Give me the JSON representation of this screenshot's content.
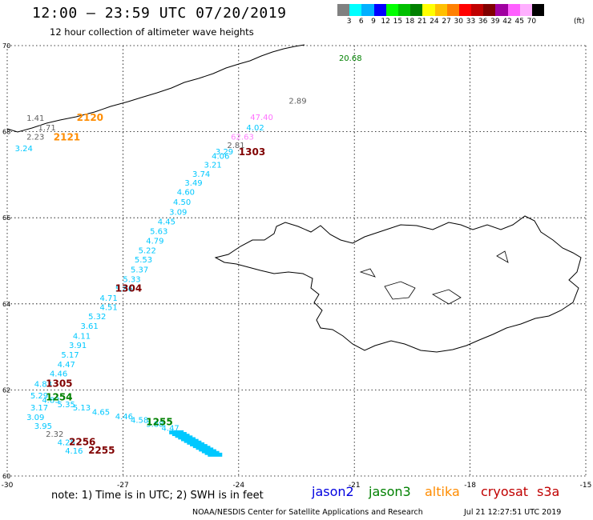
{
  "header": {
    "title": "12:00 — 23:59 UTC 07/20/2019",
    "subtitle": "12 hour collection of altimeter wave heights"
  },
  "legend": {
    "swatches": [
      "#808080",
      "#00ffff",
      "#00b0ff",
      "#0000ff",
      "#00ff00",
      "#00c000",
      "#008000",
      "#ffff00",
      "#ffc000",
      "#ff8000",
      "#ff0000",
      "#c00000",
      "#800000",
      "#a000a0",
      "#ff60ff",
      "#ffb0ff",
      "#000000"
    ],
    "labels": [
      "3",
      "6",
      "9",
      "12",
      "15",
      "18",
      "21",
      "24",
      "27",
      "30",
      "33",
      "36",
      "39",
      "42",
      "45",
      "70"
    ],
    "unit": "(ft)"
  },
  "axes": {
    "x_labels": [
      "-30",
      "-27",
      "-24",
      "-21",
      "-18",
      "-15"
    ],
    "y_labels": [
      "70",
      "68",
      "66",
      "64",
      "62",
      "60"
    ],
    "lon_range": [
      -30,
      -15
    ],
    "lat_range": [
      60,
      70
    ]
  },
  "observations": [
    {
      "text": "20.68",
      "lon": -21.4,
      "lat": 69.65,
      "color": "#008000"
    },
    {
      "text": "2.89",
      "lon": -22.7,
      "lat": 68.65,
      "color": "#606060"
    },
    {
      "text": "47.40",
      "lon": -23.7,
      "lat": 68.27,
      "color": "#ff70ff"
    },
    {
      "text": "4.02",
      "lon": -23.8,
      "lat": 68.03,
      "color": "#00c8ff"
    },
    {
      "text": "62.63",
      "lon": -24.2,
      "lat": 67.82,
      "color": "#ff80ff"
    },
    {
      "text": "2.81",
      "lon": -24.3,
      "lat": 67.62,
      "color": "#606060"
    },
    {
      "text": "3.29",
      "lon": -24.6,
      "lat": 67.47,
      "color": "#00c8ff"
    },
    {
      "text": "4.06",
      "lon": -24.7,
      "lat": 67.37,
      "color": "#00c8ff"
    },
    {
      "text": "3.21",
      "lon": -24.9,
      "lat": 67.17,
      "color": "#00c8ff"
    },
    {
      "text": "3.74",
      "lon": -25.2,
      "lat": 66.95,
      "color": "#00c8ff"
    },
    {
      "text": "3.49",
      "lon": -25.4,
      "lat": 66.75,
      "color": "#00c8ff"
    },
    {
      "text": "4.60",
      "lon": -25.6,
      "lat": 66.53,
      "color": "#00c8ff"
    },
    {
      "text": "4.50",
      "lon": -25.7,
      "lat": 66.3,
      "color": "#00c8ff"
    },
    {
      "text": "3.09",
      "lon": -25.8,
      "lat": 66.07,
      "color": "#00c8ff"
    },
    {
      "text": "4.45",
      "lon": -26.1,
      "lat": 65.85,
      "color": "#00c8ff"
    },
    {
      "text": "5.63",
      "lon": -26.3,
      "lat": 65.62,
      "color": "#00c8ff"
    },
    {
      "text": "4.79",
      "lon": -26.4,
      "lat": 65.4,
      "color": "#00c8ff"
    },
    {
      "text": "5.22",
      "lon": -26.6,
      "lat": 65.18,
      "color": "#00c8ff"
    },
    {
      "text": "5.53",
      "lon": -26.7,
      "lat": 64.96,
      "color": "#00c8ff"
    },
    {
      "text": "5.37",
      "lon": -26.8,
      "lat": 64.73,
      "color": "#00c8ff"
    },
    {
      "text": "5.33",
      "lon": -27.0,
      "lat": 64.51,
      "color": "#00c8ff"
    },
    {
      "text": "5.86",
      "lon": -27.2,
      "lat": 64.28,
      "color": "#00c8ff"
    },
    {
      "text": "4.71",
      "lon": -27.6,
      "lat": 64.07,
      "color": "#00c8ff"
    },
    {
      "text": "4.51",
      "lon": -27.6,
      "lat": 63.86,
      "color": "#00c8ff"
    },
    {
      "text": "5.32",
      "lon": -27.9,
      "lat": 63.64,
      "color": "#00c8ff"
    },
    {
      "text": "3.61",
      "lon": -28.1,
      "lat": 63.42,
      "color": "#00c8ff"
    },
    {
      "text": "4.11",
      "lon": -28.3,
      "lat": 63.19,
      "color": "#00c8ff"
    },
    {
      "text": "3.91",
      "lon": -28.4,
      "lat": 62.97,
      "color": "#00c8ff"
    },
    {
      "text": "5.17",
      "lon": -28.6,
      "lat": 62.75,
      "color": "#00c8ff"
    },
    {
      "text": "4.47",
      "lon": -28.7,
      "lat": 62.53,
      "color": "#00c8ff"
    },
    {
      "text": "4.46",
      "lon": -28.9,
      "lat": 62.31,
      "color": "#00c8ff"
    },
    {
      "text": "4.83",
      "lon": -29.3,
      "lat": 62.07,
      "color": "#00c8ff"
    },
    {
      "text": "5.29",
      "lon": -29.4,
      "lat": 61.8,
      "color": "#00c8ff"
    },
    {
      "text": "4.83",
      "lon": -29.1,
      "lat": 61.7,
      "color": "#00c8ff"
    },
    {
      "text": "5.35",
      "lon": -28.7,
      "lat": 61.6,
      "color": "#00c8ff"
    },
    {
      "text": "3.17",
      "lon": -29.4,
      "lat": 61.52,
      "color": "#00c8ff"
    },
    {
      "text": "5.13",
      "lon": -28.3,
      "lat": 61.52,
      "color": "#00c8ff"
    },
    {
      "text": "4.65",
      "lon": -27.8,
      "lat": 61.42,
      "color": "#00c8ff"
    },
    {
      "text": "3.09",
      "lon": -29.5,
      "lat": 61.3,
      "color": "#00c8ff"
    },
    {
      "text": "4.46",
      "lon": -27.2,
      "lat": 61.32,
      "color": "#00c8ff"
    },
    {
      "text": "4.58",
      "lon": -26.8,
      "lat": 61.24,
      "color": "#00c8ff"
    },
    {
      "text": "3.88",
      "lon": -26.4,
      "lat": 61.14,
      "color": "#00c8ff"
    },
    {
      "text": "4.47",
      "lon": -26.0,
      "lat": 61.05,
      "color": "#00c8ff"
    },
    {
      "text": "3.95",
      "lon": -29.3,
      "lat": 61.1,
      "color": "#00c8ff"
    },
    {
      "text": "2.32",
      "lon": -29.0,
      "lat": 60.91,
      "color": "#606060"
    },
    {
      "text": "4.25",
      "lon": -28.7,
      "lat": 60.72,
      "color": "#00c8ff"
    },
    {
      "text": "4.16",
      "lon": -28.5,
      "lat": 60.52,
      "color": "#00c8ff"
    },
    {
      "text": "1.41",
      "lon": -29.5,
      "lat": 68.25,
      "color": "#606060"
    },
    {
      "text": "1.71",
      "lon": -29.2,
      "lat": 68.03,
      "color": "#606060"
    },
    {
      "text": "2.23",
      "lon": -29.5,
      "lat": 67.82,
      "color": "#606060"
    },
    {
      "text": "3.24",
      "lon": -29.8,
      "lat": 67.55,
      "color": "#00c8ff"
    }
  ],
  "cluster": {
    "lon_start": -25.8,
    "lat_start": 60.95,
    "lon_end": -24.8,
    "lat_end": 60.43,
    "color": "#00c8ff"
  },
  "times": [
    {
      "text": "2120",
      "lon": -28.2,
      "lat": 68.25,
      "color": "#ff8c00"
    },
    {
      "text": "2121",
      "lon": -28.8,
      "lat": 67.8,
      "color": "#ff8c00"
    },
    {
      "text": "1303",
      "lon": -24.0,
      "lat": 67.45,
      "color": "#800000"
    },
    {
      "text": "1304",
      "lon": -27.2,
      "lat": 64.28,
      "color": "#800000"
    },
    {
      "text": "1305",
      "lon": -29.0,
      "lat": 62.07,
      "color": "#800000"
    },
    {
      "text": "1254",
      "lon": -29.0,
      "lat": 61.76,
      "color": "#008000"
    },
    {
      "text": "1255",
      "lon": -26.4,
      "lat": 61.18,
      "color": "#008000"
    },
    {
      "text": "2256",
      "lon": -28.4,
      "lat": 60.72,
      "color": "#800000"
    },
    {
      "text": "2255",
      "lon": -27.9,
      "lat": 60.52,
      "color": "#800000"
    }
  ],
  "footer": {
    "note": "note:  1) Time is in UTC;  2) SWH is in feet",
    "satellites": [
      {
        "name": "jason2",
        "color": "#0000e0"
      },
      {
        "name": "jason3",
        "color": "#008000"
      },
      {
        "name": "altika",
        "color": "#ff8c00"
      },
      {
        "name": "cryosat",
        "color": "#c00000"
      },
      {
        "name": "s3a",
        "color": "#c00000"
      }
    ],
    "credit": "NOAA/NESDIS Center for Satellite Applications and Research",
    "timestamp": "Jul 21 12:27:51 UTC 2019"
  }
}
